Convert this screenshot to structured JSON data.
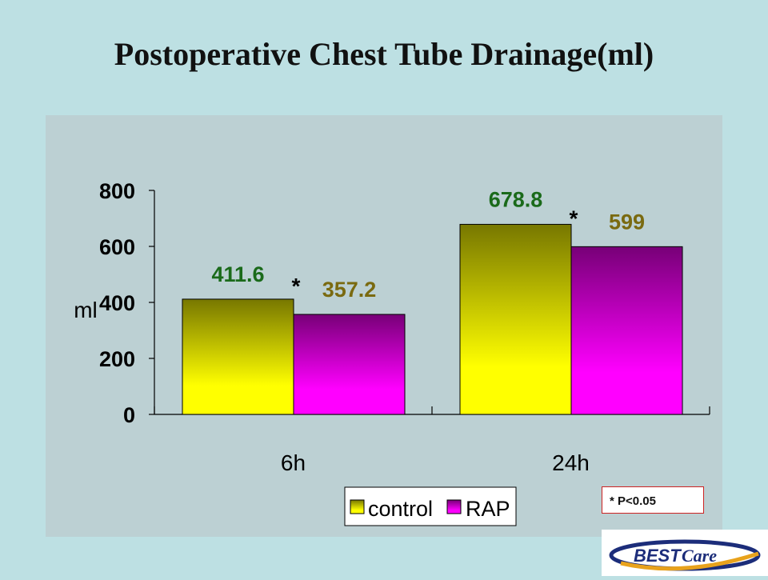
{
  "title": "Postoperative Chest Tube Drainage(ml)",
  "footnote": "* P<0.05",
  "logo_text": "BESTCare",
  "colors": {
    "background": "#bde0e3",
    "plot_area": "#bcd0d3",
    "control_top": "#777700",
    "control_bottom": "#ffff00",
    "rap_top": "#770077",
    "rap_bottom": "#ff00ff",
    "control_label": "#1a6a1a",
    "rap_label": "#7a6a10",
    "logo_navy": "#1c2d7a",
    "logo_orange": "#e8a21c"
  },
  "chart_data": {
    "type": "bar",
    "title": "Postoperative Chest Tube Drainage(ml)",
    "ylabel": "ml",
    "xlabel": "",
    "ylim": [
      0,
      800
    ],
    "yticks": [
      0,
      200,
      400,
      600,
      800
    ],
    "grid": false,
    "legend_position": "bottom",
    "categories": [
      "6h",
      "24h"
    ],
    "series": [
      {
        "name": "control",
        "values": [
          411.6,
          678.8
        ],
        "labels": [
          "411.6",
          "678.8"
        ]
      },
      {
        "name": "RAP",
        "values": [
          357.2,
          599
        ],
        "labels": [
          "357.2",
          "599"
        ]
      }
    ],
    "annotations": [
      {
        "text": "*",
        "category": "6h"
      },
      {
        "text": "*",
        "category": "24h"
      }
    ]
  }
}
